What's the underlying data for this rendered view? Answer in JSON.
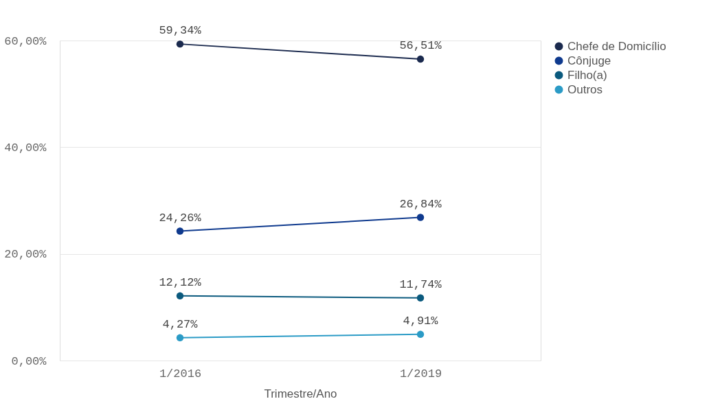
{
  "chart_data": {
    "type": "line",
    "xlabel": "Trimestre/Ano",
    "categories": [
      "1/2016",
      "1/2019"
    ],
    "series": [
      {
        "name": "Chefe de Domicílio",
        "color": "#1b2a4e",
        "values": [
          59.34,
          56.51
        ],
        "value_labels": [
          "59,34%",
          "56,51%"
        ]
      },
      {
        "name": "Cônjuge",
        "color": "#0f3a8e",
        "values": [
          24.26,
          26.84
        ],
        "value_labels": [
          "24,26%",
          "26,84%"
        ]
      },
      {
        "name": "Filho(a)",
        "color": "#0b5a7e",
        "values": [
          12.12,
          11.74
        ],
        "value_labels": [
          "12,12%",
          "11,74%"
        ]
      },
      {
        "name": "Outros",
        "color": "#2b9bc6",
        "values": [
          4.27,
          4.91
        ],
        "value_labels": [
          "4,27%",
          "4,91%"
        ]
      }
    ],
    "ylim": [
      0,
      60
    ],
    "yticks": [
      {
        "value": 0,
        "label": "0,00%"
      },
      {
        "value": 20,
        "label": "20,00%"
      },
      {
        "value": 40,
        "label": "40,00%"
      },
      {
        "value": 60,
        "label": "60,00%"
      }
    ],
    "grid": "y",
    "legend": "top right",
    "marker": "circle",
    "line_style": "solid"
  }
}
